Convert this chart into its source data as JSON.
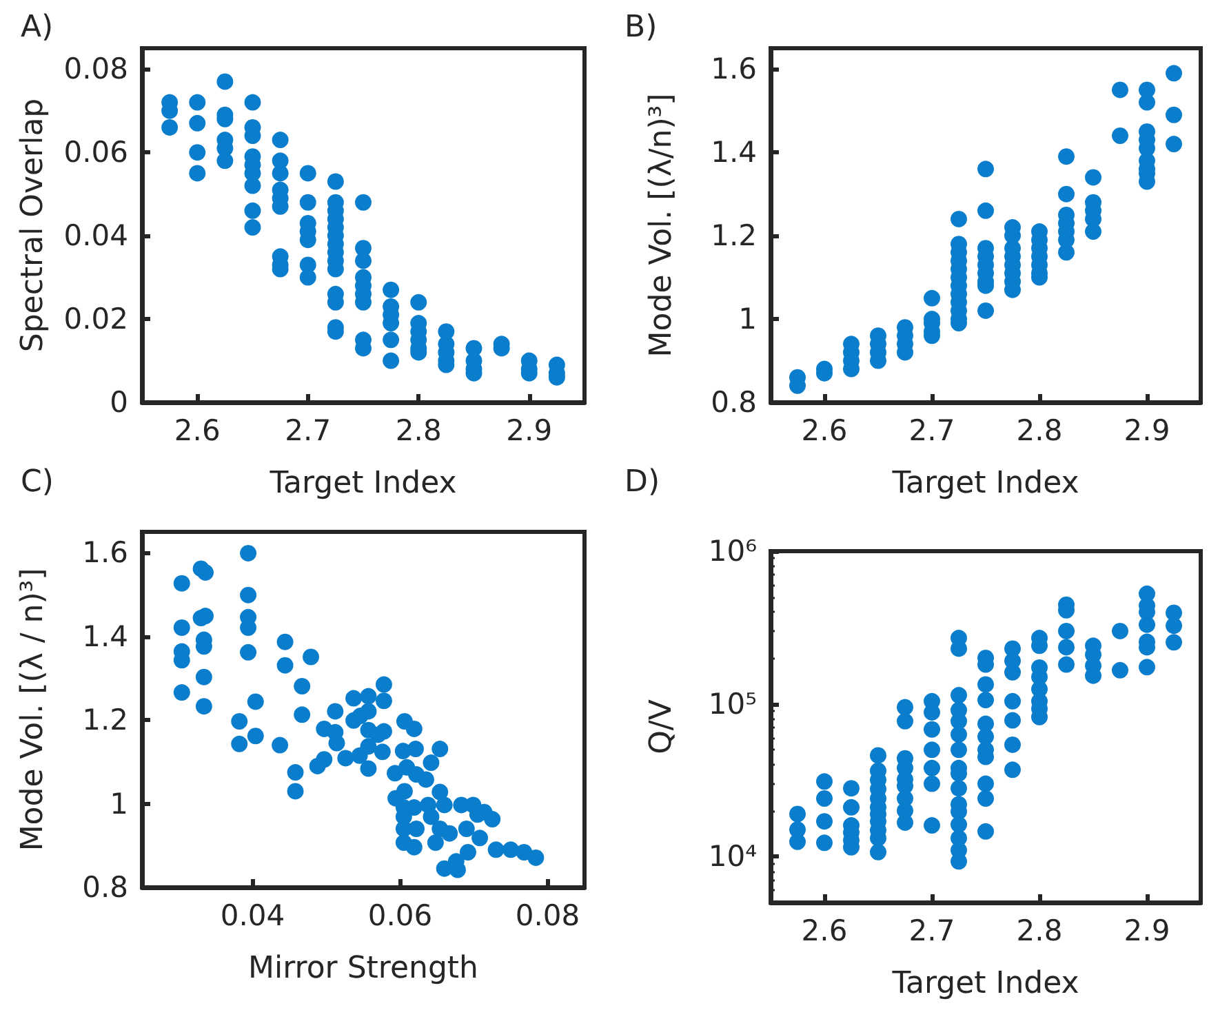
{
  "chart_data": [
    {
      "type": "scatter",
      "title": "A)",
      "xlabel": "Target Index",
      "ylabel": "Spectral Overlap",
      "marker": "circle",
      "xlim": [
        2.55,
        2.95
      ],
      "xticks": [
        2.6,
        2.7,
        2.8,
        2.9
      ],
      "ylim": [
        0,
        0.085
      ],
      "yticks": [
        0,
        0.02,
        0.04,
        0.06,
        0.08
      ],
      "series": [
        {
          "color": "#0a7dcc",
          "x": [
            2.575,
            2.575,
            2.575,
            2.6,
            2.6,
            2.6,
            2.6,
            2.625,
            2.625,
            2.625,
            2.625,
            2.625,
            2.625,
            2.65,
            2.65,
            2.65,
            2.65,
            2.65,
            2.65,
            2.65,
            2.65,
            2.65,
            2.675,
            2.675,
            2.675,
            2.675,
            2.675,
            2.675,
            2.675,
            2.675,
            2.675,
            2.7,
            2.7,
            2.7,
            2.7,
            2.7,
            2.7,
            2.7,
            2.725,
            2.725,
            2.725,
            2.725,
            2.725,
            2.725,
            2.725,
            2.725,
            2.725,
            2.725,
            2.725,
            2.725,
            2.725,
            2.725,
            2.75,
            2.75,
            2.75,
            2.75,
            2.75,
            2.75,
            2.75,
            2.75,
            2.75,
            2.775,
            2.775,
            2.775,
            2.775,
            2.775,
            2.775,
            2.8,
            2.8,
            2.8,
            2.8,
            2.8,
            2.8,
            2.825,
            2.825,
            2.825,
            2.825,
            2.825,
            2.85,
            2.85,
            2.85,
            2.85,
            2.875,
            2.875,
            2.9,
            2.9,
            2.9,
            2.925,
            2.925,
            2.925
          ],
          "values": [
            0.072,
            0.07,
            0.066,
            0.072,
            0.067,
            0.06,
            0.055,
            0.077,
            0.069,
            0.068,
            0.063,
            0.061,
            0.058,
            0.072,
            0.066,
            0.064,
            0.059,
            0.057,
            0.055,
            0.052,
            0.046,
            0.042,
            0.063,
            0.058,
            0.055,
            0.051,
            0.049,
            0.047,
            0.035,
            0.033,
            0.032,
            0.055,
            0.048,
            0.043,
            0.041,
            0.039,
            0.033,
            0.03,
            0.053,
            0.048,
            0.046,
            0.044,
            0.042,
            0.04,
            0.038,
            0.036,
            0.034,
            0.032,
            0.026,
            0.024,
            0.018,
            0.017,
            0.048,
            0.037,
            0.034,
            0.03,
            0.028,
            0.026,
            0.024,
            0.015,
            0.013,
            0.027,
            0.023,
            0.021,
            0.019,
            0.015,
            0.01,
            0.024,
            0.019,
            0.017,
            0.015,
            0.013,
            0.012,
            0.017,
            0.014,
            0.012,
            0.01,
            0.009,
            0.013,
            0.01,
            0.008,
            0.007,
            0.014,
            0.013,
            0.01,
            0.008,
            0.007,
            0.009,
            0.007,
            0.006
          ]
        }
      ]
    },
    {
      "type": "scatter",
      "title": "B)",
      "xlabel": "Target Index",
      "ylabel": "Mode Vol. [(λ/n)³]",
      "marker": "circle",
      "xlim": [
        2.55,
        2.95
      ],
      "xticks": [
        2.6,
        2.7,
        2.8,
        2.9
      ],
      "ylim": [
        0.8,
        1.65
      ],
      "yticks": [
        0.8,
        1,
        1.2,
        1.4,
        1.6
      ],
      "series": [
        {
          "color": "#0a7dcc",
          "x": [
            2.575,
            2.575,
            2.6,
            2.6,
            2.625,
            2.625,
            2.625,
            2.625,
            2.65,
            2.65,
            2.65,
            2.65,
            2.675,
            2.675,
            2.675,
            2.675,
            2.7,
            2.7,
            2.7,
            2.7,
            2.7,
            2.725,
            2.725,
            2.725,
            2.725,
            2.725,
            2.725,
            2.725,
            2.725,
            2.725,
            2.725,
            2.725,
            2.725,
            2.75,
            2.75,
            2.75,
            2.75,
            2.75,
            2.75,
            2.75,
            2.75,
            2.75,
            2.775,
            2.775,
            2.775,
            2.775,
            2.775,
            2.775,
            2.775,
            2.775,
            2.8,
            2.8,
            2.8,
            2.8,
            2.8,
            2.8,
            2.8,
            2.825,
            2.825,
            2.825,
            2.825,
            2.825,
            2.825,
            2.825,
            2.85,
            2.85,
            2.85,
            2.85,
            2.85,
            2.875,
            2.875,
            2.9,
            2.9,
            2.9,
            2.9,
            2.9,
            2.9,
            2.9,
            2.9,
            2.9,
            2.925,
            2.925,
            2.925
          ],
          "values": [
            0.86,
            0.84,
            0.88,
            0.87,
            0.94,
            0.92,
            0.9,
            0.88,
            0.96,
            0.94,
            0.92,
            0.9,
            0.98,
            0.96,
            0.94,
            0.92,
            1.05,
            1,
            0.99,
            0.97,
            0.96,
            1.24,
            1.18,
            1.16,
            1.14,
            1.12,
            1.1,
            1.08,
            1.06,
            1.04,
            1.02,
            1,
            0.99,
            1.36,
            1.26,
            1.17,
            1.15,
            1.13,
            1.11,
            1.09,
            1.08,
            1.02,
            1.22,
            1.2,
            1.17,
            1.15,
            1.13,
            1.11,
            1.09,
            1.07,
            1.21,
            1.19,
            1.17,
            1.15,
            1.13,
            1.11,
            1.1,
            1.39,
            1.3,
            1.25,
            1.23,
            1.21,
            1.19,
            1.16,
            1.34,
            1.28,
            1.26,
            1.24,
            1.21,
            1.55,
            1.44,
            1.55,
            1.52,
            1.45,
            1.43,
            1.41,
            1.38,
            1.36,
            1.35,
            1.33,
            1.59,
            1.49,
            1.42
          ]
        }
      ]
    },
    {
      "type": "scatter",
      "title": "C)",
      "xlabel": "Mirror Strength",
      "ylabel": "Mode Vol. [(λ / n)³]",
      "marker": "circle",
      "xlim": [
        0.025,
        0.085
      ],
      "xticks": [
        0.04,
        0.06,
        0.08
      ],
      "ylim": [
        0.8,
        1.65
      ],
      "yticks": [
        0.8,
        1,
        1.2,
        1.4,
        1.6
      ],
      "series": [
        {
          "color": "#0a7dcc",
          "x": [
            0.0304,
            0.0304,
            0.0304,
            0.0304,
            0.0304,
            0.033,
            0.0336,
            0.033,
            0.0336,
            0.0334,
            0.0334,
            0.0334,
            0.0334,
            0.0394,
            0.0394,
            0.0394,
            0.0394,
            0.0394,
            0.0382,
            0.0382,
            0.0404,
            0.0404,
            0.0444,
            0.0444,
            0.0479,
            0.0437,
            0.0458,
            0.0458,
            0.0467,
            0.0467,
            0.0488,
            0.0497,
            0.0497,
            0.0512,
            0.0512,
            0.0514,
            0.0526,
            0.0537,
            0.0537,
            0.0546,
            0.0545,
            0.0557,
            0.0557,
            0.0557,
            0.0557,
            0.0557,
            0.0578,
            0.0578,
            0.0578,
            0.0576,
            0.057,
            0.0606,
            0.0619,
            0.0604,
            0.0621,
            0.0593,
            0.0609,
            0.0622,
            0.0635,
            0.0642,
            0.0654,
            0.0654,
            0.0594,
            0.0606,
            0.0605,
            0.0605,
            0.0605,
            0.0605,
            0.0619,
            0.0619,
            0.0622,
            0.0638,
            0.0642,
            0.0648,
            0.0654,
            0.066,
            0.066,
            0.0667,
            0.0676,
            0.0678,
            0.0683,
            0.069,
            0.0699,
            0.0692,
            0.0708,
            0.0705,
            0.0714,
            0.0725,
            0.073,
            0.075,
            0.0768,
            0.0784
          ],
          "values": [
            1.527,
            1.421,
            1.364,
            1.343,
            1.266,
            1.562,
            1.553,
            1.444,
            1.449,
            1.392,
            1.376,
            1.303,
            1.233,
            1.599,
            1.499,
            1.446,
            1.421,
            1.362,
            1.197,
            1.143,
            1.244,
            1.162,
            1.387,
            1.331,
            1.351,
            1.14,
            1.075,
            1.03,
            1.281,
            1.213,
            1.09,
            1.106,
            1.179,
            1.221,
            1.171,
            1.145,
            1.109,
            1.252,
            1.199,
            1.21,
            1.115,
            1.257,
            1.221,
            1.176,
            1.137,
            1.084,
            1.285,
            1.246,
            1.173,
            1.124,
            1.165,
            1.197,
            1.179,
            1.126,
            1.131,
            1.073,
            1.087,
            1.07,
            1.058,
            1.098,
            1.131,
            1.028,
            1.013,
            1.03,
            0.991,
            0.969,
            0.94,
            0.907,
            0.991,
            0.896,
            0.94,
            0.997,
            0.969,
            0.907,
            0.94,
            0.997,
            0.845,
            0.929,
            0.862,
            0.842,
            0.997,
            0.94,
            0.997,
            0.884,
            0.918,
            0.974,
            0.98,
            0.963,
            0.89,
            0.89,
            0.884,
            0.871
          ]
        }
      ]
    },
    {
      "type": "scatter",
      "title": "D)",
      "xlabel": "Target Index",
      "ylabel": "Q/V",
      "marker": "circle",
      "log": "y",
      "xlim": [
        2.55,
        2.95
      ],
      "xticks": [
        2.6,
        2.7,
        2.8,
        2.9
      ],
      "ylim": [
        5000,
        1000000
      ],
      "yticks": [
        {
          "value": 10000,
          "label": "10⁴"
        },
        {
          "value": 100000,
          "label": "10⁵"
        },
        {
          "value": 1000000,
          "label": "10⁶"
        }
      ],
      "series": [
        {
          "color": "#0a7dcc",
          "x": [
            2.575,
            2.575,
            2.575,
            2.6,
            2.6,
            2.6,
            2.6,
            2.625,
            2.625,
            2.625,
            2.625,
            2.625,
            2.625,
            2.65,
            2.65,
            2.65,
            2.65,
            2.65,
            2.65,
            2.65,
            2.65,
            2.65,
            2.65,
            2.65,
            2.675,
            2.675,
            2.675,
            2.675,
            2.675,
            2.675,
            2.675,
            2.675,
            2.675,
            2.7,
            2.7,
            2.7,
            2.7,
            2.7,
            2.7,
            2.7,
            2.725,
            2.725,
            2.725,
            2.725,
            2.725,
            2.725,
            2.725,
            2.725,
            2.725,
            2.725,
            2.725,
            2.725,
            2.725,
            2.725,
            2.725,
            2.725,
            2.75,
            2.75,
            2.75,
            2.75,
            2.75,
            2.75,
            2.75,
            2.75,
            2.75,
            2.75,
            2.75,
            2.775,
            2.775,
            2.775,
            2.775,
            2.775,
            2.775,
            2.775,
            2.8,
            2.8,
            2.8,
            2.8,
            2.8,
            2.8,
            2.8,
            2.8,
            2.825,
            2.825,
            2.825,
            2.825,
            2.825,
            2.85,
            2.85,
            2.85,
            2.85,
            2.875,
            2.875,
            2.9,
            2.9,
            2.9,
            2.9,
            2.9,
            2.9,
            2.9,
            2.925,
            2.925,
            2.925
          ],
          "values": [
            19000,
            15000,
            12500,
            31000,
            24000,
            17000,
            12300,
            28000,
            21000,
            16000,
            14400,
            12800,
            11500,
            46000,
            36500,
            31800,
            27700,
            24000,
            21000,
            19000,
            17000,
            14900,
            13200,
            10700,
            95000,
            77000,
            44000,
            38000,
            32000,
            29000,
            24000,
            20000,
            16700,
            104000,
            88000,
            68000,
            50000,
            38000,
            30000,
            16000,
            270000,
            230000,
            114000,
            91000,
            77000,
            63000,
            50000,
            38000,
            35000,
            28000,
            22000,
            19700,
            16200,
            13200,
            11000,
            9300,
            200000,
            181000,
            134000,
            106000,
            74000,
            61000,
            50000,
            45000,
            30000,
            24000,
            14600,
            230000,
            191000,
            161000,
            104000,
            78000,
            54000,
            37000,
            270000,
            240000,
            173000,
            150000,
            125000,
            104000,
            93000,
            82000,
            446000,
            410000,
            300000,
            235000,
            181000,
            240000,
            210000,
            178000,
            153000,
            300000,
            166000,
            526000,
            440000,
            400000,
            330000,
            255000,
            235000,
            174000,
            395000,
            325000,
            253000
          ]
        }
      ]
    }
  ]
}
